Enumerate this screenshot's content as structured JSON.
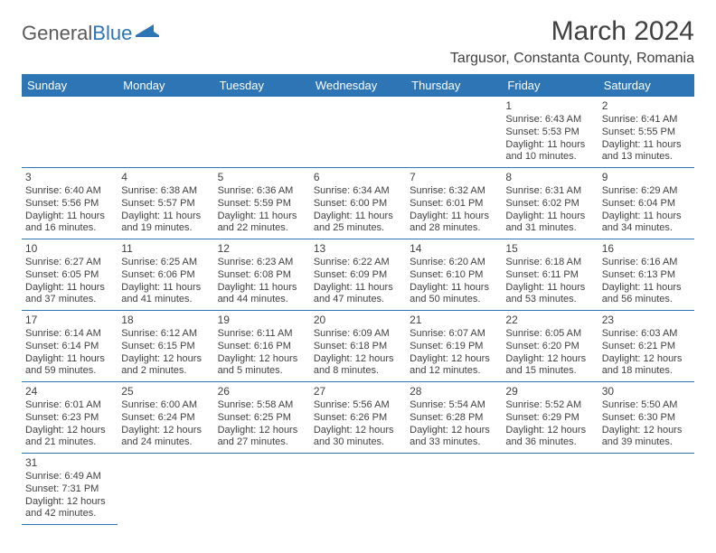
{
  "logo": {
    "general": "General",
    "blue": "Blue"
  },
  "title": "March 2024",
  "location": "Targusor, Constanta County, Romania",
  "colors": {
    "header_bg": "#2e75b6",
    "header_text": "#ffffff",
    "border": "#2e75b6",
    "text": "#404040",
    "logo_gray": "#5a5a5a",
    "logo_blue": "#2e75b6",
    "background": "#ffffff"
  },
  "weekdays": [
    "Sunday",
    "Monday",
    "Tuesday",
    "Wednesday",
    "Thursday",
    "Friday",
    "Saturday"
  ],
  "weeks": [
    [
      null,
      null,
      null,
      null,
      null,
      {
        "day": "1",
        "sunrise": "Sunrise: 6:43 AM",
        "sunset": "Sunset: 5:53 PM",
        "daylight": "Daylight: 11 hours and 10 minutes."
      },
      {
        "day": "2",
        "sunrise": "Sunrise: 6:41 AM",
        "sunset": "Sunset: 5:55 PM",
        "daylight": "Daylight: 11 hours and 13 minutes."
      }
    ],
    [
      {
        "day": "3",
        "sunrise": "Sunrise: 6:40 AM",
        "sunset": "Sunset: 5:56 PM",
        "daylight": "Daylight: 11 hours and 16 minutes."
      },
      {
        "day": "4",
        "sunrise": "Sunrise: 6:38 AM",
        "sunset": "Sunset: 5:57 PM",
        "daylight": "Daylight: 11 hours and 19 minutes."
      },
      {
        "day": "5",
        "sunrise": "Sunrise: 6:36 AM",
        "sunset": "Sunset: 5:59 PM",
        "daylight": "Daylight: 11 hours and 22 minutes."
      },
      {
        "day": "6",
        "sunrise": "Sunrise: 6:34 AM",
        "sunset": "Sunset: 6:00 PM",
        "daylight": "Daylight: 11 hours and 25 minutes."
      },
      {
        "day": "7",
        "sunrise": "Sunrise: 6:32 AM",
        "sunset": "Sunset: 6:01 PM",
        "daylight": "Daylight: 11 hours and 28 minutes."
      },
      {
        "day": "8",
        "sunrise": "Sunrise: 6:31 AM",
        "sunset": "Sunset: 6:02 PM",
        "daylight": "Daylight: 11 hours and 31 minutes."
      },
      {
        "day": "9",
        "sunrise": "Sunrise: 6:29 AM",
        "sunset": "Sunset: 6:04 PM",
        "daylight": "Daylight: 11 hours and 34 minutes."
      }
    ],
    [
      {
        "day": "10",
        "sunrise": "Sunrise: 6:27 AM",
        "sunset": "Sunset: 6:05 PM",
        "daylight": "Daylight: 11 hours and 37 minutes."
      },
      {
        "day": "11",
        "sunrise": "Sunrise: 6:25 AM",
        "sunset": "Sunset: 6:06 PM",
        "daylight": "Daylight: 11 hours and 41 minutes."
      },
      {
        "day": "12",
        "sunrise": "Sunrise: 6:23 AM",
        "sunset": "Sunset: 6:08 PM",
        "daylight": "Daylight: 11 hours and 44 minutes."
      },
      {
        "day": "13",
        "sunrise": "Sunrise: 6:22 AM",
        "sunset": "Sunset: 6:09 PM",
        "daylight": "Daylight: 11 hours and 47 minutes."
      },
      {
        "day": "14",
        "sunrise": "Sunrise: 6:20 AM",
        "sunset": "Sunset: 6:10 PM",
        "daylight": "Daylight: 11 hours and 50 minutes."
      },
      {
        "day": "15",
        "sunrise": "Sunrise: 6:18 AM",
        "sunset": "Sunset: 6:11 PM",
        "daylight": "Daylight: 11 hours and 53 minutes."
      },
      {
        "day": "16",
        "sunrise": "Sunrise: 6:16 AM",
        "sunset": "Sunset: 6:13 PM",
        "daylight": "Daylight: 11 hours and 56 minutes."
      }
    ],
    [
      {
        "day": "17",
        "sunrise": "Sunrise: 6:14 AM",
        "sunset": "Sunset: 6:14 PM",
        "daylight": "Daylight: 11 hours and 59 minutes."
      },
      {
        "day": "18",
        "sunrise": "Sunrise: 6:12 AM",
        "sunset": "Sunset: 6:15 PM",
        "daylight": "Daylight: 12 hours and 2 minutes."
      },
      {
        "day": "19",
        "sunrise": "Sunrise: 6:11 AM",
        "sunset": "Sunset: 6:16 PM",
        "daylight": "Daylight: 12 hours and 5 minutes."
      },
      {
        "day": "20",
        "sunrise": "Sunrise: 6:09 AM",
        "sunset": "Sunset: 6:18 PM",
        "daylight": "Daylight: 12 hours and 8 minutes."
      },
      {
        "day": "21",
        "sunrise": "Sunrise: 6:07 AM",
        "sunset": "Sunset: 6:19 PM",
        "daylight": "Daylight: 12 hours and 12 minutes."
      },
      {
        "day": "22",
        "sunrise": "Sunrise: 6:05 AM",
        "sunset": "Sunset: 6:20 PM",
        "daylight": "Daylight: 12 hours and 15 minutes."
      },
      {
        "day": "23",
        "sunrise": "Sunrise: 6:03 AM",
        "sunset": "Sunset: 6:21 PM",
        "daylight": "Daylight: 12 hours and 18 minutes."
      }
    ],
    [
      {
        "day": "24",
        "sunrise": "Sunrise: 6:01 AM",
        "sunset": "Sunset: 6:23 PM",
        "daylight": "Daylight: 12 hours and 21 minutes."
      },
      {
        "day": "25",
        "sunrise": "Sunrise: 6:00 AM",
        "sunset": "Sunset: 6:24 PM",
        "daylight": "Daylight: 12 hours and 24 minutes."
      },
      {
        "day": "26",
        "sunrise": "Sunrise: 5:58 AM",
        "sunset": "Sunset: 6:25 PM",
        "daylight": "Daylight: 12 hours and 27 minutes."
      },
      {
        "day": "27",
        "sunrise": "Sunrise: 5:56 AM",
        "sunset": "Sunset: 6:26 PM",
        "daylight": "Daylight: 12 hours and 30 minutes."
      },
      {
        "day": "28",
        "sunrise": "Sunrise: 5:54 AM",
        "sunset": "Sunset: 6:28 PM",
        "daylight": "Daylight: 12 hours and 33 minutes."
      },
      {
        "day": "29",
        "sunrise": "Sunrise: 5:52 AM",
        "sunset": "Sunset: 6:29 PM",
        "daylight": "Daylight: 12 hours and 36 minutes."
      },
      {
        "day": "30",
        "sunrise": "Sunrise: 5:50 AM",
        "sunset": "Sunset: 6:30 PM",
        "daylight": "Daylight: 12 hours and 39 minutes."
      }
    ],
    [
      {
        "day": "31",
        "sunrise": "Sunrise: 6:49 AM",
        "sunset": "Sunset: 7:31 PM",
        "daylight": "Daylight: 12 hours and 42 minutes."
      },
      null,
      null,
      null,
      null,
      null,
      null
    ]
  ]
}
